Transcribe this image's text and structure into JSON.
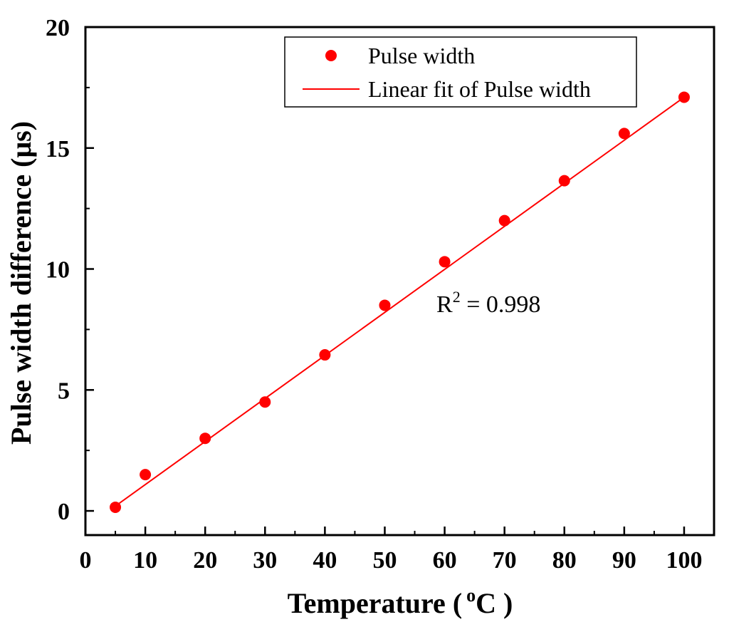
{
  "chart_data": {
    "type": "scatter",
    "title": "",
    "xlabel": "Temperature (",
    "xlabel_unit_sup": "o",
    "xlabel_unit": "C )",
    "ylabel": "Pulse width difference (μs)",
    "xlim": [
      0,
      105
    ],
    "ylim": [
      -1,
      20
    ],
    "xticks": [
      0,
      10,
      20,
      30,
      40,
      50,
      60,
      70,
      80,
      90,
      100
    ],
    "yticks": [
      0,
      5,
      10,
      15,
      20
    ],
    "grid": false,
    "legend_position": "top-center",
    "series": [
      {
        "name": "Pulse width",
        "kind": "scatter",
        "x": [
          5,
          10,
          20,
          30,
          40,
          50,
          60,
          70,
          80,
          90,
          100
        ],
        "y": [
          0.15,
          1.5,
          3.0,
          4.5,
          6.45,
          8.5,
          10.3,
          12.0,
          13.65,
          15.6,
          17.1
        ]
      },
      {
        "name": "Linear fit of Pulse width",
        "kind": "line",
        "x": [
          5,
          100
        ],
        "y": [
          0.2,
          17.1
        ]
      }
    ],
    "annotation": {
      "base": "R",
      "sup": "2",
      "text": " = 0.998"
    },
    "colors": {
      "series": "#ff0000",
      "axis": "#000000"
    }
  }
}
